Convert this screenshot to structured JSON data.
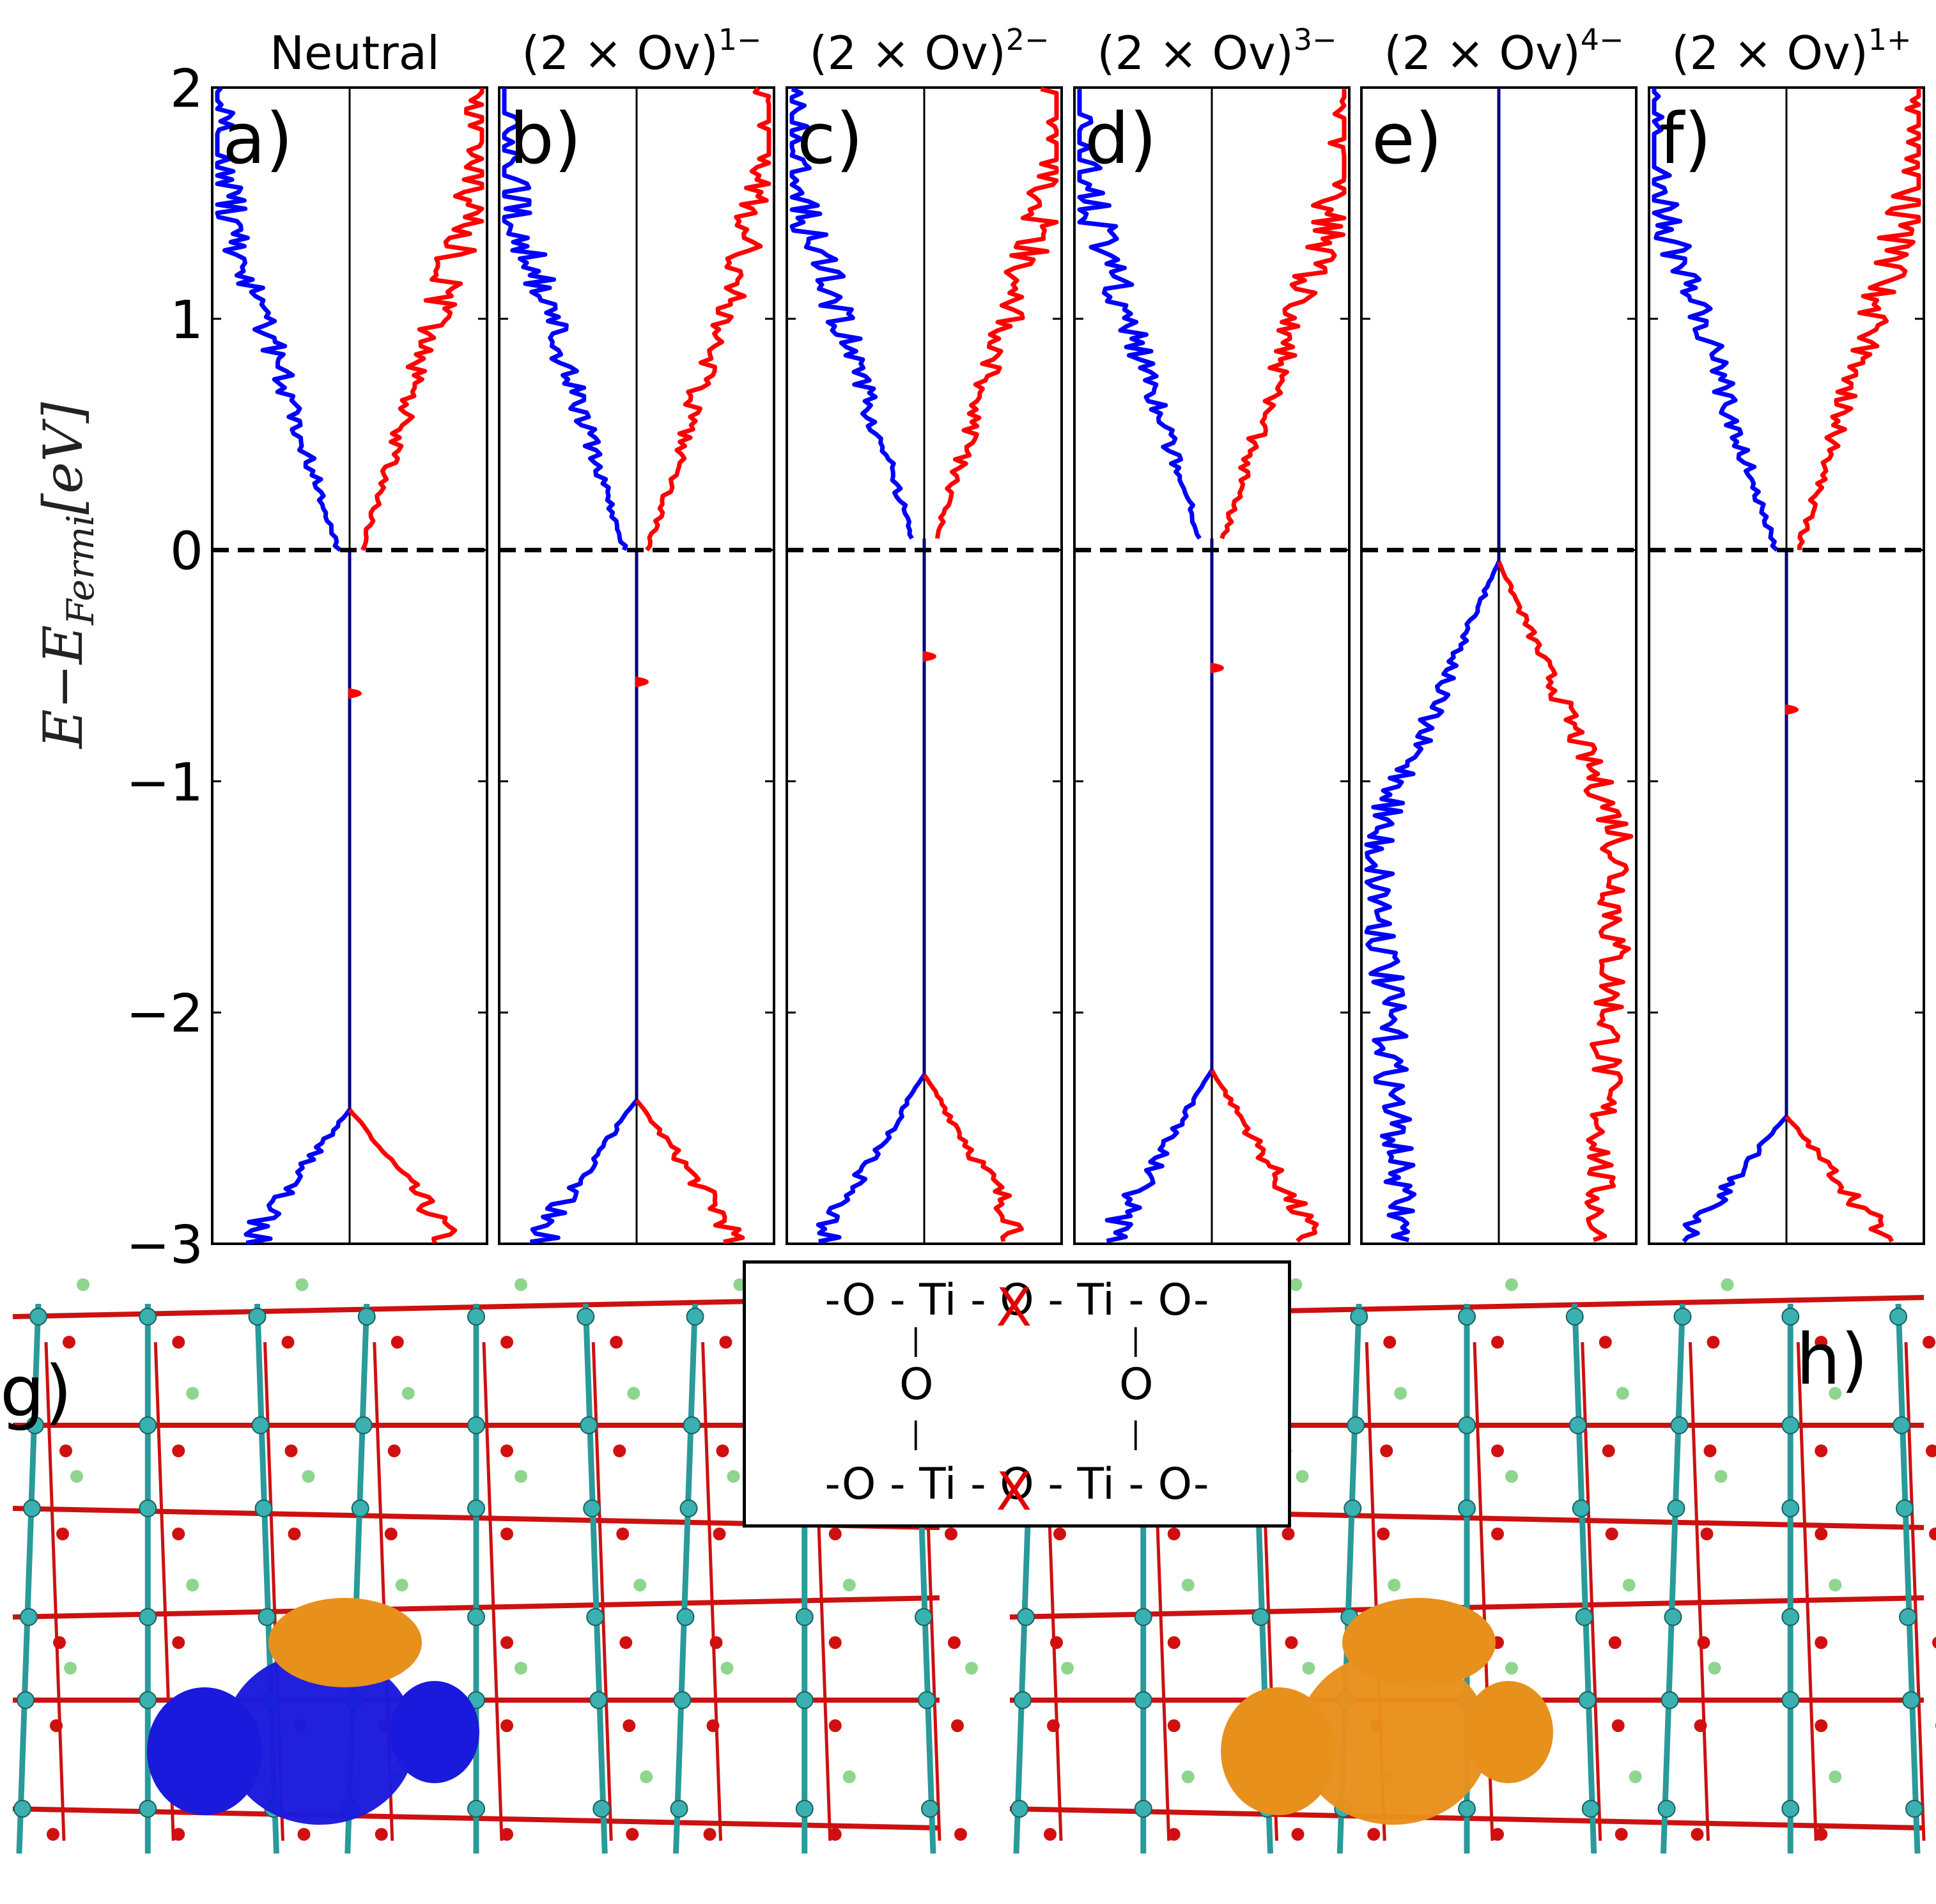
{
  "chart_data": {
    "type": "line",
    "ylabel": "E−E_Fermi [eV]",
    "ylabel_main": "E−E",
    "ylabel_sub": "Fermi",
    "ylabel_unit": "[eV]",
    "ylim": [
      -3,
      2
    ],
    "yticks": [
      2,
      1,
      0,
      -1,
      -2,
      -3
    ],
    "ytick_labels": [
      "2",
      "1",
      "0",
      "−1",
      "−2",
      "−3"
    ],
    "fermi_level": 0,
    "series_colors": {
      "spin_up": "#0000ff",
      "spin_down": "#ff0000",
      "axis": "#000080"
    },
    "panels": [
      {
        "letter": "a)",
        "title": "Neutral",
        "vbm": -2.42,
        "cbm": 0.0,
        "defect_levels": [
          -0.62
        ],
        "cb_width": 0.55
      },
      {
        "letter": "b)",
        "title": "(2 × Ov)",
        "charge": "1−",
        "vbm": -2.38,
        "cbm": 0.0,
        "defect_levels": [
          -0.57
        ],
        "cb_width": 0.55
      },
      {
        "letter": "c)",
        "title": "(2 × Ov)",
        "charge": "2−",
        "vbm": -2.27,
        "cbm": 0.05,
        "defect_levels": [
          -0.46
        ],
        "cb_width": 0.55
      },
      {
        "letter": "d)",
        "title": "(2 × Ov)",
        "charge": "3−",
        "vbm": -2.25,
        "cbm": 0.05,
        "defect_levels": [
          -0.51
        ],
        "cb_width": 0.55
      },
      {
        "letter": "e)",
        "title": "(2 × Ov)",
        "charge": "4−",
        "vbm": -0.05,
        "cbm": 2.0,
        "defect_levels": [],
        "cb_width": 0.0
      },
      {
        "letter": "f)",
        "title": "(2 × Ov)",
        "charge": "1+",
        "vbm": -2.45,
        "cbm": 0.0,
        "defect_levels": [
          -0.69
        ],
        "cb_width": 0.55
      }
    ]
  },
  "structures": [
    {
      "letter": "g)",
      "isosurface_color": "#1a1adc"
    },
    {
      "letter": "h)",
      "isosurface_color": "#e8901c"
    }
  ],
  "schematic": {
    "row1": [
      "-O - Ti - ",
      "O",
      " - Ti - O-"
    ],
    "row2": [
      "|",
      "|"
    ],
    "row3": [
      "O",
      "O"
    ],
    "row4": [
      "|",
      "|"
    ],
    "row5": [
      "-O - Ti - ",
      "O",
      " - Ti - O-"
    ],
    "cross": "X"
  }
}
